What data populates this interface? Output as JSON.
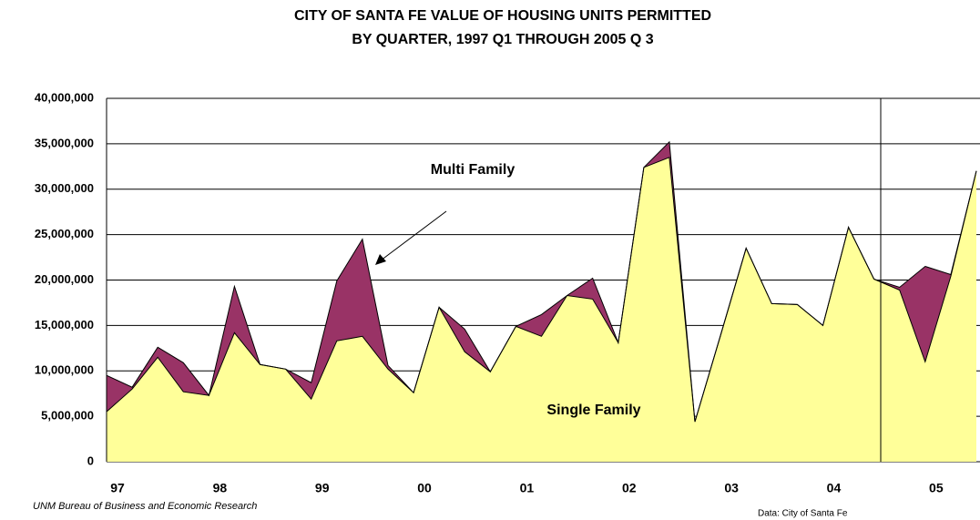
{
  "chart_data": {
    "type": "stacked_area",
    "title": "CITY OF SANTA FE VALUE OF HOUSING UNITS PERMITTED",
    "subtitle": "BY QUARTER, 1997 Q1 THROUGH 2005 Q 3",
    "categories": [
      "97",
      null,
      null,
      null,
      "98",
      null,
      null,
      null,
      "99",
      null,
      null,
      null,
      "00",
      null,
      null,
      null,
      "01",
      null,
      null,
      null,
      "02",
      null,
      null,
      null,
      "03",
      null,
      null,
      null,
      "04",
      null,
      null,
      null,
      "05",
      null,
      null
    ],
    "series": [
      {
        "name": "Single Family",
        "color": "#ffff99",
        "values": [
          5500000,
          8000000,
          11500000,
          7700000,
          7300000,
          14200000,
          10700000,
          10200000,
          6900000,
          13300000,
          13800000,
          10200000,
          7600000,
          17000000,
          12100000,
          9900000,
          14900000,
          13800000,
          18300000,
          17900000,
          13100000,
          32400000,
          33500000,
          4400000,
          13900000,
          23500000,
          17400000,
          17300000,
          15000000,
          25800000,
          20100000,
          18900000,
          11000000,
          20400000,
          32000000
        ]
      },
      {
        "name": "Multi Family",
        "color": "#993366",
        "values": [
          4000000,
          200000,
          1100000,
          3200000,
          0,
          5100000,
          0,
          0,
          1800000,
          6600000,
          10700000,
          400000,
          0,
          0,
          2500000,
          0,
          0,
          2400000,
          0,
          2300000,
          0,
          0,
          1700000,
          0,
          0,
          0,
          0,
          0,
          0,
          0,
          0,
          300000,
          10500000,
          200000,
          0
        ]
      }
    ],
    "ylim": [
      0,
      40000000
    ],
    "yticks": [
      {
        "value": 0,
        "label": "0"
      },
      {
        "value": 5000000,
        "label": "5,000,000"
      },
      {
        "value": 10000000,
        "label": "10,000,000"
      },
      {
        "value": 15000000,
        "label": "15,000,000"
      },
      {
        "value": 20000000,
        "label": "20,000,000"
      },
      {
        "value": 25000000,
        "label": "25,000,000"
      },
      {
        "value": 30000000,
        "label": "30,000,000"
      },
      {
        "value": 35000000,
        "label": "35,000,000"
      },
      {
        "value": 40000000,
        "label": "40,000,000"
      }
    ],
    "grid": true,
    "source_left": "UNM Bureau of Business and Economic Research",
    "source_right": "Data:  City of Santa Fe"
  }
}
